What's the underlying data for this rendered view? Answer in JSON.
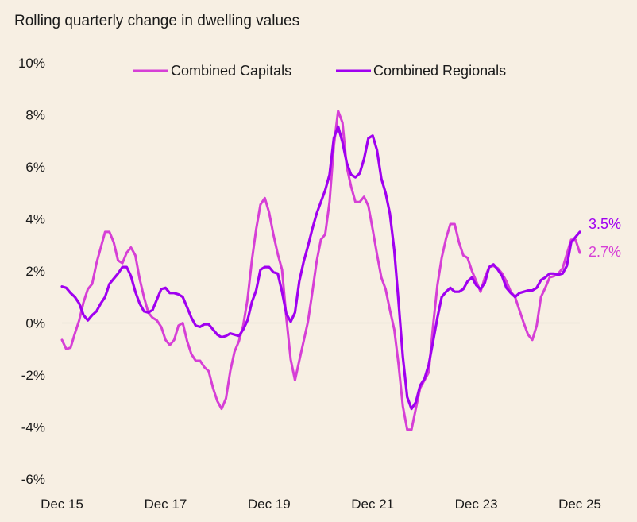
{
  "chart_data": {
    "type": "line",
    "title": "Rolling quarterly change in dwelling values",
    "x_tick_labels": [
      "Dec 15",
      "Dec 17",
      "Dec 19",
      "Dec 21",
      "Dec 23",
      "Dec 25"
    ],
    "x_range": [
      "Dec 15",
      "Dec 25"
    ],
    "frequency": "monthly",
    "ylim": [
      -6,
      10
    ],
    "y_ticks": [
      -6,
      -4,
      -2,
      0,
      2,
      4,
      6,
      8,
      10
    ],
    "y_tick_labels": [
      "-6%",
      "-4%",
      "-2%",
      "0%",
      "2%",
      "4%",
      "6%",
      "8%",
      "10%"
    ],
    "grid": false,
    "zero_line": true,
    "legend_position": "top-center",
    "series": [
      {
        "name": "Combined Capitals",
        "color": "#d63fd6",
        "end_label": "2.7%",
        "values": [
          -0.65,
          -1.0,
          -0.95,
          -0.4,
          0.1,
          0.8,
          1.3,
          1.5,
          2.3,
          2.9,
          3.5,
          3.5,
          3.1,
          2.4,
          2.3,
          2.7,
          2.9,
          2.6,
          1.7,
          1.0,
          0.4,
          0.2,
          0.1,
          -0.15,
          -0.65,
          -0.85,
          -0.65,
          -0.1,
          0.0,
          -0.7,
          -1.2,
          -1.45,
          -1.45,
          -1.7,
          -1.85,
          -2.5,
          -3.0,
          -3.3,
          -2.9,
          -1.85,
          -1.1,
          -0.7,
          -0.1,
          0.9,
          2.4,
          3.6,
          4.55,
          4.8,
          4.25,
          3.4,
          2.65,
          2.05,
          0.2,
          -1.4,
          -2.2,
          -1.45,
          -0.7,
          0.05,
          1.15,
          2.35,
          3.2,
          3.4,
          4.65,
          6.8,
          8.15,
          7.7,
          6.0,
          5.25,
          4.65,
          4.65,
          4.85,
          4.5,
          3.6,
          2.65,
          1.75,
          1.3,
          0.5,
          -0.25,
          -1.6,
          -3.2,
          -4.1,
          -4.1,
          -3.3,
          -2.5,
          -2.2,
          -1.9,
          -0.1,
          1.45,
          2.5,
          3.25,
          3.8,
          3.8,
          3.1,
          2.6,
          2.5,
          2.0,
          1.6,
          1.2,
          1.75,
          2.15,
          2.2,
          2.1,
          1.9,
          1.6,
          1.2,
          1.0,
          0.5,
          0.0,
          -0.45,
          -0.65,
          -0.1,
          1.0,
          1.35,
          1.75,
          1.8,
          1.9,
          2.1,
          2.65,
          3.2,
          3.2,
          2.7
        ]
      },
      {
        "name": "Combined Regionals",
        "color": "#a000f0",
        "end_label": "3.5%",
        "values": [
          1.4,
          1.35,
          1.15,
          1.0,
          0.75,
          0.3,
          0.1,
          0.3,
          0.45,
          0.75,
          1.0,
          1.5,
          1.7,
          1.9,
          2.15,
          2.15,
          1.8,
          1.2,
          0.75,
          0.45,
          0.4,
          0.5,
          0.9,
          1.3,
          1.35,
          1.15,
          1.15,
          1.1,
          1.0,
          0.6,
          0.2,
          -0.1,
          -0.15,
          -0.05,
          -0.05,
          -0.25,
          -0.45,
          -0.55,
          -0.5,
          -0.4,
          -0.45,
          -0.5,
          -0.25,
          0.1,
          0.8,
          1.25,
          2.05,
          2.15,
          2.15,
          1.95,
          1.9,
          1.2,
          0.35,
          0.05,
          0.4,
          1.6,
          2.35,
          2.95,
          3.6,
          4.2,
          4.65,
          5.1,
          5.7,
          7.1,
          7.55,
          6.95,
          6.15,
          5.7,
          5.6,
          5.75,
          6.3,
          7.1,
          7.2,
          6.65,
          5.55,
          5.0,
          4.2,
          2.8,
          0.8,
          -1.3,
          -2.85,
          -3.3,
          -3.05,
          -2.4,
          -2.15,
          -1.6,
          -0.7,
          0.2,
          1.0,
          1.2,
          1.35,
          1.2,
          1.2,
          1.3,
          1.6,
          1.75,
          1.45,
          1.3,
          1.55,
          2.15,
          2.25,
          2.05,
          1.8,
          1.35,
          1.15,
          1.0,
          1.15,
          1.2,
          1.25,
          1.25,
          1.35,
          1.65,
          1.75,
          1.9,
          1.9,
          1.85,
          1.9,
          2.2,
          3.1,
          3.3,
          3.5
        ]
      }
    ]
  }
}
